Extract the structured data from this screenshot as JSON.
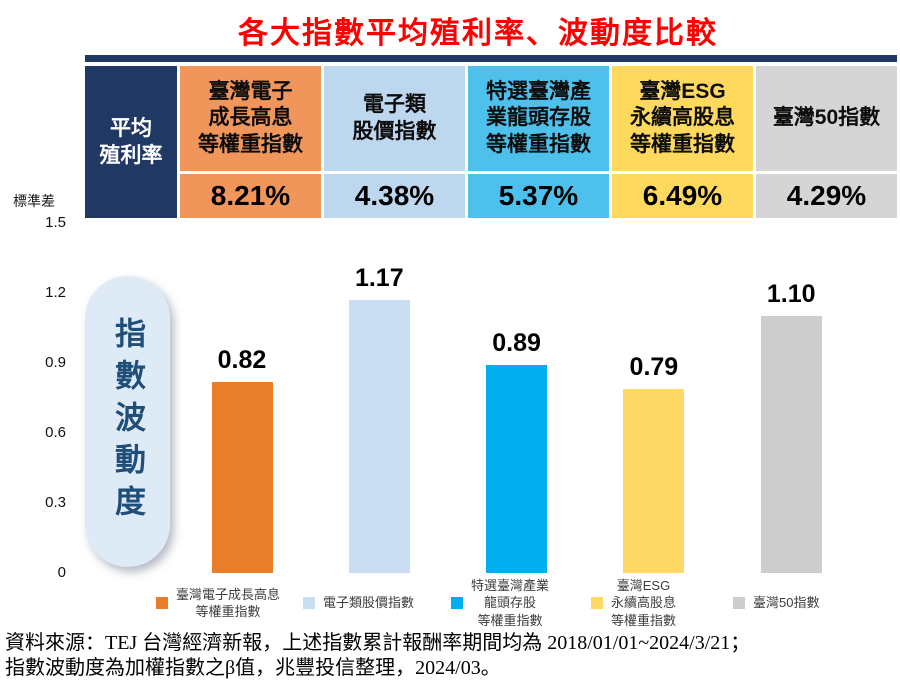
{
  "title": "各大指數平均殖利率、波動度比較",
  "colors": {
    "title": "#FF0000",
    "navy": "#1F3864",
    "pill_bg": "#DEEAF6",
    "pill_text": "#1F4E79"
  },
  "table": {
    "corner_label_lines": [
      "平均",
      "殖利率"
    ],
    "columns": [
      {
        "name_lines": [
          "臺灣電子",
          "成長高息",
          "等權重指數"
        ],
        "value": "8.21%",
        "header_color": "#F0965A"
      },
      {
        "name_lines": [
          "電子類",
          "股價指數"
        ],
        "value": "4.38%",
        "header_color": "#BDD7EE"
      },
      {
        "name_lines": [
          "特選臺灣產",
          "業龍頭存股",
          "等權重指數"
        ],
        "value": "5.37%",
        "header_color": "#4DC0EC"
      },
      {
        "name_lines": [
          "臺灣ESG",
          "永續高股息",
          "等權重指數"
        ],
        "value": "6.49%",
        "header_color": "#FFD95E"
      },
      {
        "name_lines": [
          "臺灣50指數"
        ],
        "value": "4.29%",
        "header_color": "#D5D5D5"
      }
    ]
  },
  "chart_data": {
    "type": "bar",
    "title": "指數波動度",
    "ylabel": "標準差",
    "ylim": [
      0,
      1.5
    ],
    "grid": false,
    "legend_position": "bottom",
    "yticks": [
      {
        "value": 0,
        "label": "0"
      },
      {
        "value": 0.3,
        "label": "0.3"
      },
      {
        "value": 0.6,
        "label": "0.6"
      },
      {
        "value": 0.9,
        "label": "0.9"
      },
      {
        "value": 1.2,
        "label": "1.2"
      },
      {
        "value": 1.5,
        "label": "1.5"
      }
    ],
    "categories": [
      "臺灣電子成長高息等權重指數",
      "電子類股價指數",
      "特選臺灣產業龍頭存股等權重指數",
      "臺灣ESG永續高股息等權重指數",
      "臺灣50指數"
    ],
    "values": [
      0.82,
      1.17,
      0.89,
      0.79,
      1.1
    ],
    "value_labels": [
      "0.82",
      "1.17",
      "0.89",
      "0.79",
      "1.10"
    ],
    "bar_colors": [
      "#E87D2A",
      "#C9DEF3",
      "#00AEEF",
      "#FFD966",
      "#CDCDCD"
    ]
  },
  "legend": [
    {
      "lines": [
        "臺灣電子成長高息",
        "等權重指數"
      ],
      "color": "#E87D2A"
    },
    {
      "lines": [
        "電子類股價指數"
      ],
      "color": "#C9DEF3"
    },
    {
      "lines": [
        "特選臺灣產業",
        "龍頭存股",
        "等權重指數"
      ],
      "color": "#00AEEF"
    },
    {
      "lines": [
        "臺灣ESG",
        "永續高股息",
        "等權重指數"
      ],
      "color": "#FFD966"
    },
    {
      "lines": [
        "臺灣50指數"
      ],
      "color": "#CDCDCD"
    }
  ],
  "footer": {
    "line1": "資料來源：TEJ 台灣經濟新報，上述指數累計報酬率期間均為 2018/01/01~2024/3/21；",
    "line2": "指數波動度為加權指數之β值，兆豐投信整理，2024/03。"
  }
}
